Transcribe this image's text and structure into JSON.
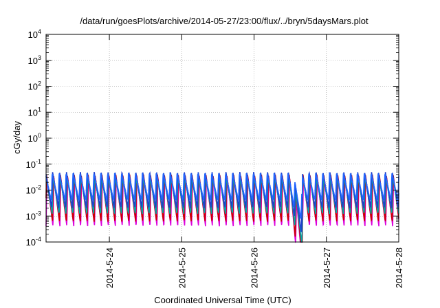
{
  "chart_data": {
    "type": "line",
    "title": "/data/run/goesPlots/archive/2014-05-27/23:00/flux/../bryn/5daysMars.plot",
    "xlabel": "Coordinated Universal Time (UTC)",
    "ylabel": "cGy/day",
    "yscale": "log",
    "ylim": [
      0.0001,
      10000
    ],
    "xlim": [
      "2014-05-23 03:00",
      "2014-05-28 00:00"
    ],
    "grid": true,
    "x_ticks": [
      "2014-5-24",
      "2014-5-25",
      "2014-5-26",
      "2014-5-27",
      "2014-5-28"
    ],
    "y_ticks": [
      {
        "base": "10",
        "exp": "-4"
      },
      {
        "base": "10",
        "exp": "-3"
      },
      {
        "base": "10",
        "exp": "-2"
      },
      {
        "base": "10",
        "exp": "-1"
      },
      {
        "base": "10",
        "exp": "0"
      },
      {
        "base": "10",
        "exp": "1"
      },
      {
        "base": "10",
        "exp": "2"
      },
      {
        "base": "10",
        "exp": "3"
      },
      {
        "base": "10",
        "exp": "4"
      }
    ],
    "cycle_hours": 2.3,
    "dip": {
      "start": "2014-05-26 12:00",
      "end": "2014-05-26 16:00"
    },
    "series": [
      {
        "color": "#dd00dd",
        "peak": 0.03,
        "trough": 0.0004
      },
      {
        "color": "#cc0000",
        "peak": 0.04,
        "trough": 0.0006
      },
      {
        "color": "#00aaaa",
        "peak": 0.035,
        "trough": 0.0012
      },
      {
        "color": "#1f3fcc",
        "peak": 0.05,
        "trough": 0.002
      },
      {
        "color": "#2266ff",
        "peak": 0.045,
        "trough": 0.004
      }
    ]
  }
}
